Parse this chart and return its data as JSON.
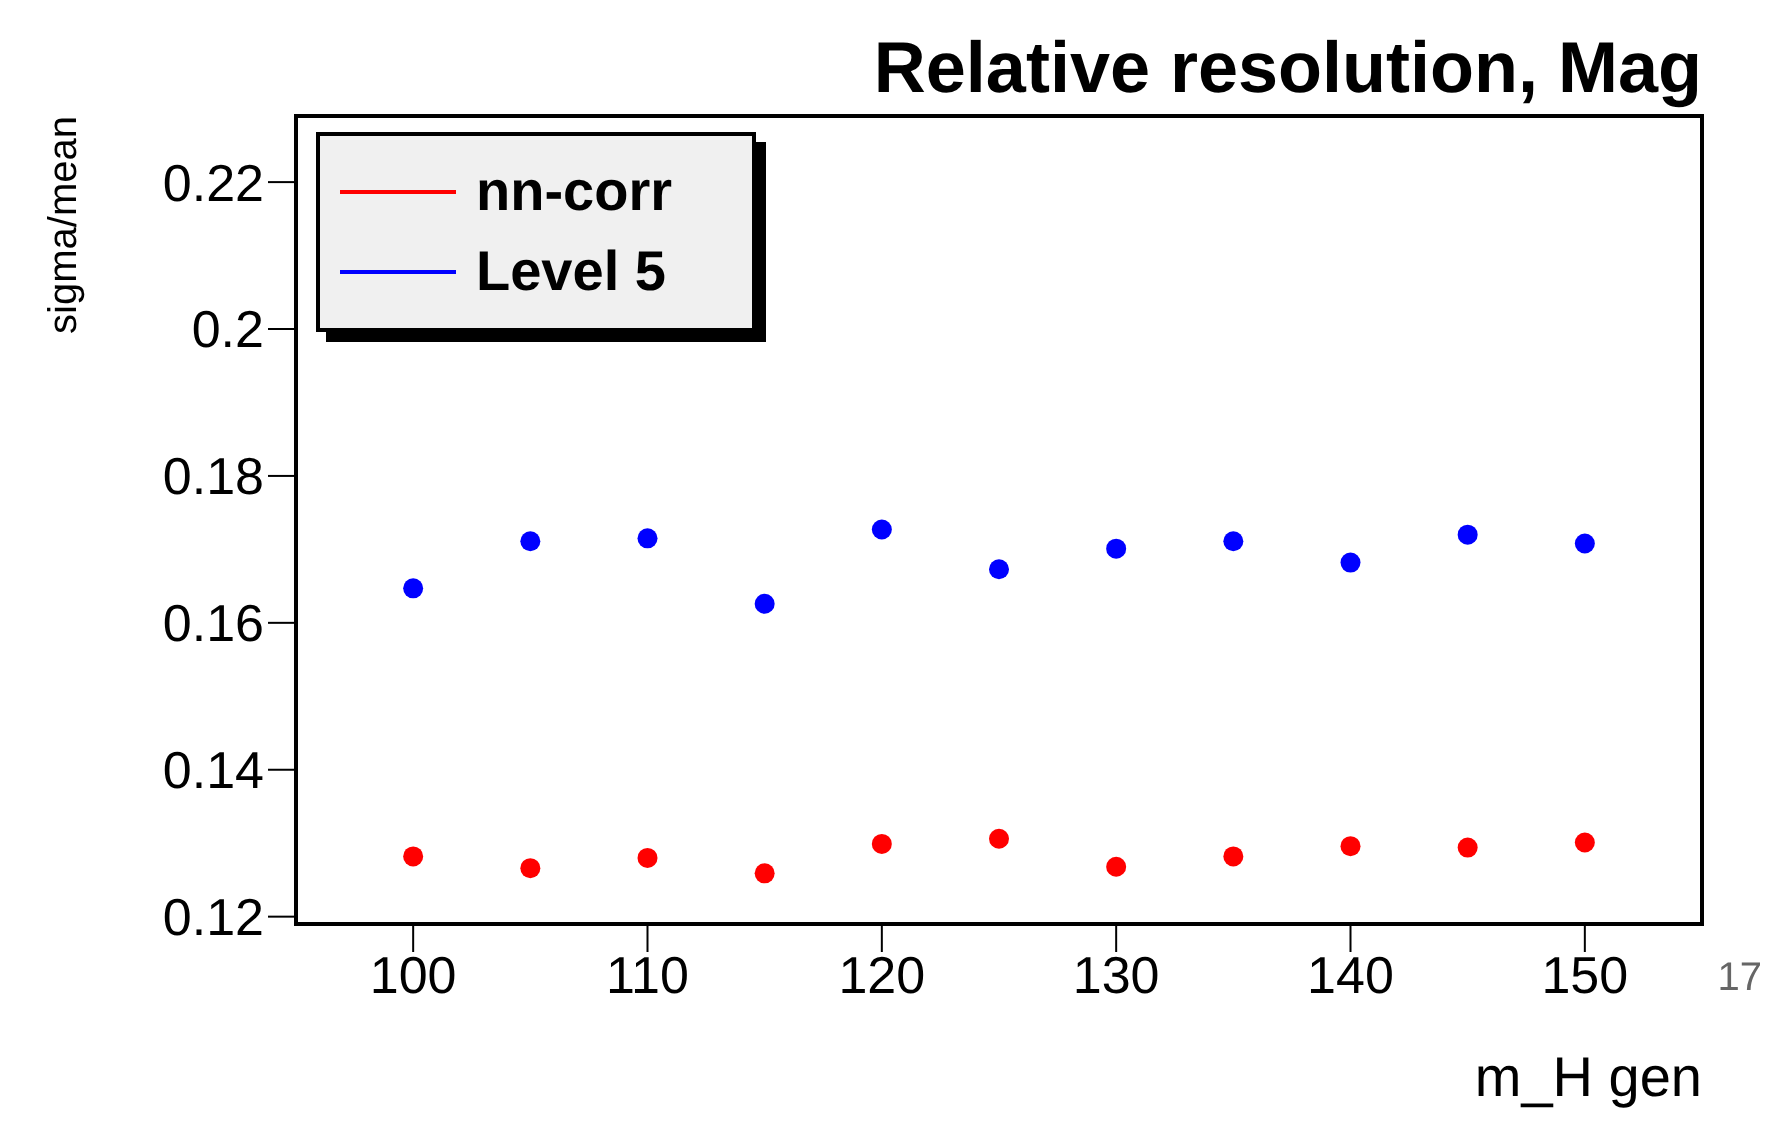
{
  "chart_data": {
    "type": "scatter",
    "title": "Relative resolution, Mag",
    "xlabel": "m_H gen",
    "ylabel": "sigma/mean",
    "x": [
      100,
      105,
      110,
      115,
      120,
      125,
      130,
      135,
      140,
      145,
      150
    ],
    "series": [
      {
        "name": "nn-corr",
        "color": "#ff0000",
        "values": [
          0.1282,
          0.1266,
          0.128,
          0.1259,
          0.1299,
          0.1306,
          0.1268,
          0.1282,
          0.1296,
          0.1294,
          0.1301
        ]
      },
      {
        "name": "Level 5",
        "color": "#0000ff",
        "values": [
          0.1647,
          0.1711,
          0.1715,
          0.1626,
          0.1727,
          0.1673,
          0.1701,
          0.1711,
          0.1682,
          0.172,
          0.1708
        ]
      }
    ],
    "xlim": [
      95,
      155
    ],
    "xticks": [
      100,
      110,
      120,
      130,
      140,
      150
    ],
    "ylim": [
      0.119,
      0.229
    ],
    "yticks": [
      0.12,
      0.14,
      0.16,
      0.18,
      0.2,
      0.22
    ],
    "grid": false,
    "legend": "top left",
    "marker": "circle",
    "annotations": [
      "17"
    ]
  }
}
